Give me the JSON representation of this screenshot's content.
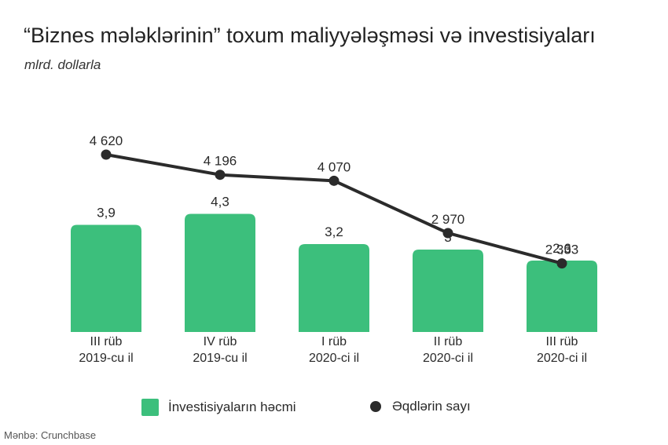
{
  "title": "“Biznes mələklərinin” toxum maliyyələşməsi və investisiyaları",
  "subtitle": "mlrd. dollarla",
  "source": "Mənbə: Crunchbase",
  "colors": {
    "bar": "#3cbf7c",
    "line": "#2b2b2b",
    "text": "#2a2a2a"
  },
  "chart_data": {
    "type": "bar",
    "categories": [
      [
        "III rüb",
        "2019-cu il"
      ],
      [
        "IV rüb",
        "2019-cu il"
      ],
      [
        "I rüb",
        "2020-ci il"
      ],
      [
        "II rüb",
        "2020-ci il"
      ],
      [
        "III rüb",
        "2020-ci il"
      ]
    ],
    "series": [
      {
        "name": "İnvestisiyaların həcmi",
        "type": "bar",
        "values": [
          3.9,
          4.3,
          3.2,
          3,
          2.6
        ],
        "labels": [
          "3,9",
          "4,3",
          "3,2",
          "3",
          "2,6"
        ]
      },
      {
        "name": "Əqdlərin sayı",
        "type": "line",
        "values": [
          4620,
          4196,
          4070,
          2970,
          2333
        ],
        "labels": [
          "4 620",
          "4 196",
          "4 070",
          "2 970",
          "2 333"
        ]
      }
    ],
    "legend": "bottom",
    "grid": false
  },
  "legend": {
    "bar_label": "İnvestisiyaların həcmi",
    "line_label": "Əqdlərin sayı"
  }
}
